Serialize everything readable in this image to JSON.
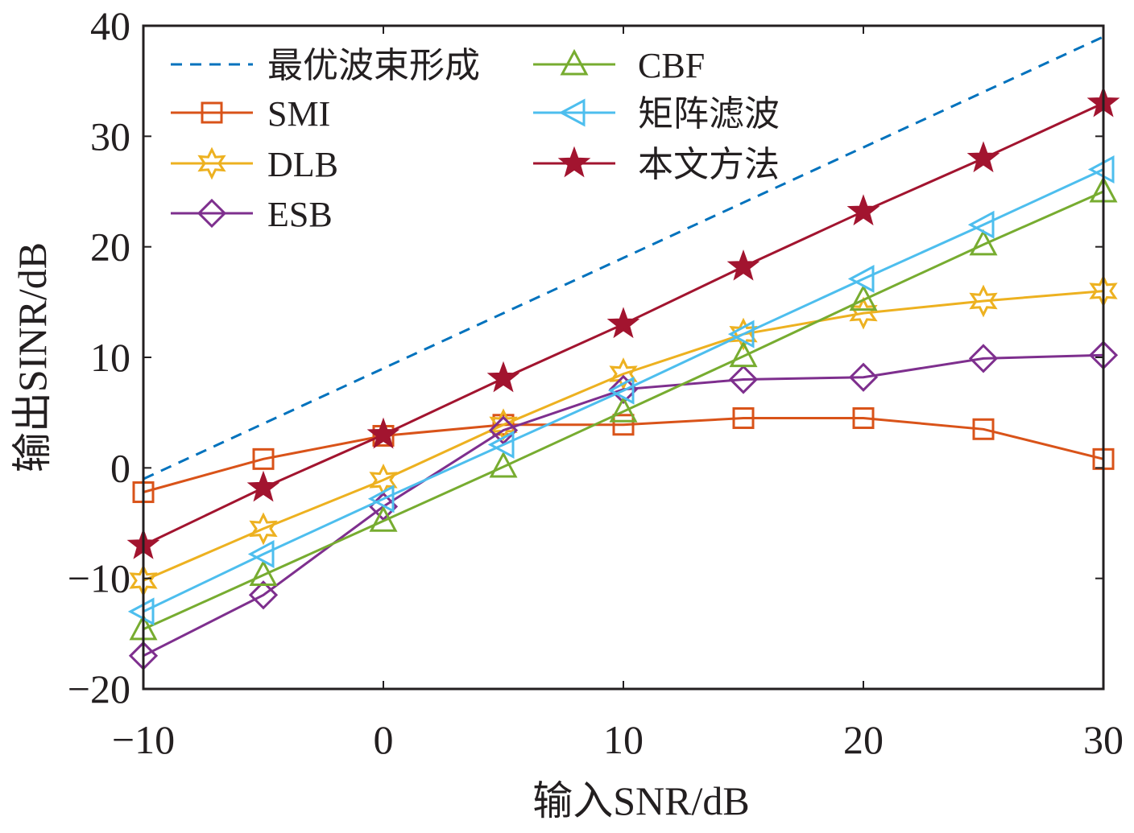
{
  "chart_data": {
    "type": "line",
    "title": "",
    "xlabel": "输入SNR/dB",
    "ylabel": "输出SINR/dB",
    "xlim": [
      -10,
      30
    ],
    "ylim": [
      -20,
      40
    ],
    "xticks": [
      -10,
      0,
      10,
      20,
      30
    ],
    "yticks": [
      -20,
      -10,
      0,
      10,
      20,
      30,
      40
    ],
    "xtick_labels": [
      "−10",
      "0",
      "10",
      "20",
      "30"
    ],
    "ytick_labels": [
      "−20",
      "−10",
      "0",
      "10",
      "20",
      "30",
      "40"
    ],
    "grid": false,
    "legend_position": "top-left",
    "x": [
      -10,
      -5,
      0,
      5,
      10,
      15,
      20,
      25,
      30
    ],
    "series": [
      {
        "name": "最优波束形成",
        "color": "#0072BD",
        "marker": "none",
        "dash": true,
        "values": [
          -1,
          4,
          9,
          14,
          19,
          24,
          29,
          34,
          39
        ]
      },
      {
        "name": "SMI",
        "color": "#D95319",
        "marker": "square",
        "values": [
          -2.2,
          0.8,
          2.9,
          3.9,
          3.9,
          4.5,
          4.5,
          3.5,
          0.8
        ]
      },
      {
        "name": "DLB",
        "color": "#EDB120",
        "marker": "hexagram",
        "values": [
          -10.2,
          -5.5,
          -1.1,
          3.9,
          8.5,
          12.1,
          14,
          15.1,
          16
        ]
      },
      {
        "name": "ESB",
        "color": "#7E2F8E",
        "marker": "diamond",
        "values": [
          -17,
          -11.5,
          -3.5,
          3.4,
          7.1,
          8,
          8.2,
          9.9,
          10.2
        ]
      },
      {
        "name": "CBF",
        "color": "#77AC30",
        "marker": "triangle-up",
        "values": [
          -14.6,
          -9.7,
          -4.8,
          0.1,
          5.1,
          10.1,
          15.2,
          20.2,
          25
        ]
      },
      {
        "name": "矩阵滤波",
        "color": "#4DBEEE",
        "marker": "triangle-left",
        "values": [
          -13,
          -7.8,
          -2.8,
          2.1,
          7,
          12.1,
          17.1,
          22,
          27
        ]
      },
      {
        "name": "本文方法",
        "color": "#A2142F",
        "marker": "filled-star",
        "values": [
          -7,
          -1.8,
          3,
          8.1,
          13,
          18.2,
          23.2,
          28,
          33
        ]
      }
    ]
  }
}
